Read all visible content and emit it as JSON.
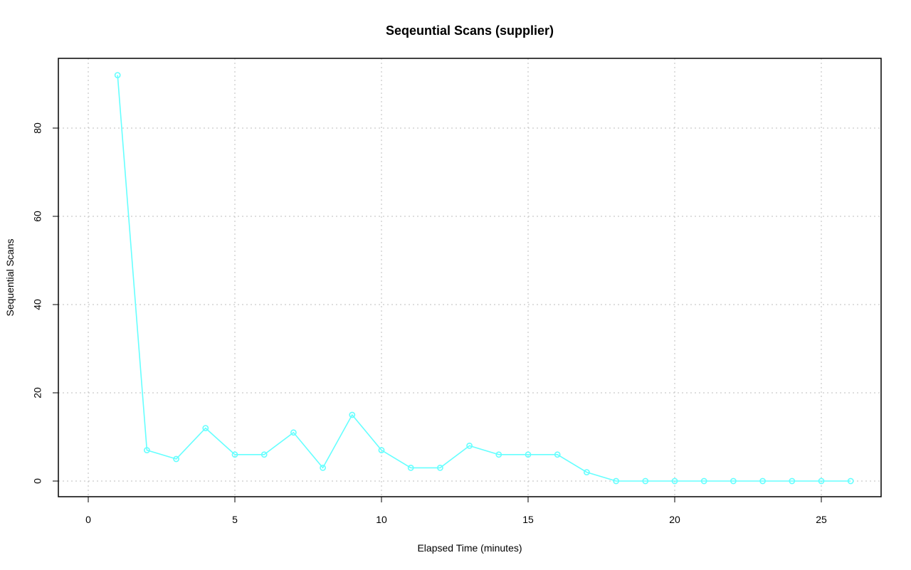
{
  "chart_data": {
    "type": "line",
    "title": "Seqeuntial Scans (supplier)",
    "xlabel": "Elapsed Time (minutes)",
    "ylabel": "Sequential Scans",
    "xlim": [
      0,
      27
    ],
    "ylim": [
      -3.5,
      96
    ],
    "xticks": [
      0,
      5,
      10,
      15,
      20,
      25
    ],
    "yticks": [
      0,
      20,
      40,
      60,
      80
    ],
    "grid": true,
    "color": "#66ffff",
    "x": [
      1,
      2,
      3,
      4,
      5,
      6,
      7,
      8,
      9,
      10,
      11,
      12,
      13,
      14,
      15,
      16,
      17,
      18,
      19,
      20,
      21,
      22,
      23,
      24,
      25,
      26
    ],
    "series": [
      {
        "values": [
          92,
          7,
          5,
          12,
          6,
          6,
          11,
          3,
          15,
          7,
          3,
          3,
          8,
          6,
          6,
          6,
          2,
          0,
          0,
          0,
          0,
          0,
          0,
          0,
          0,
          0
        ]
      }
    ]
  }
}
